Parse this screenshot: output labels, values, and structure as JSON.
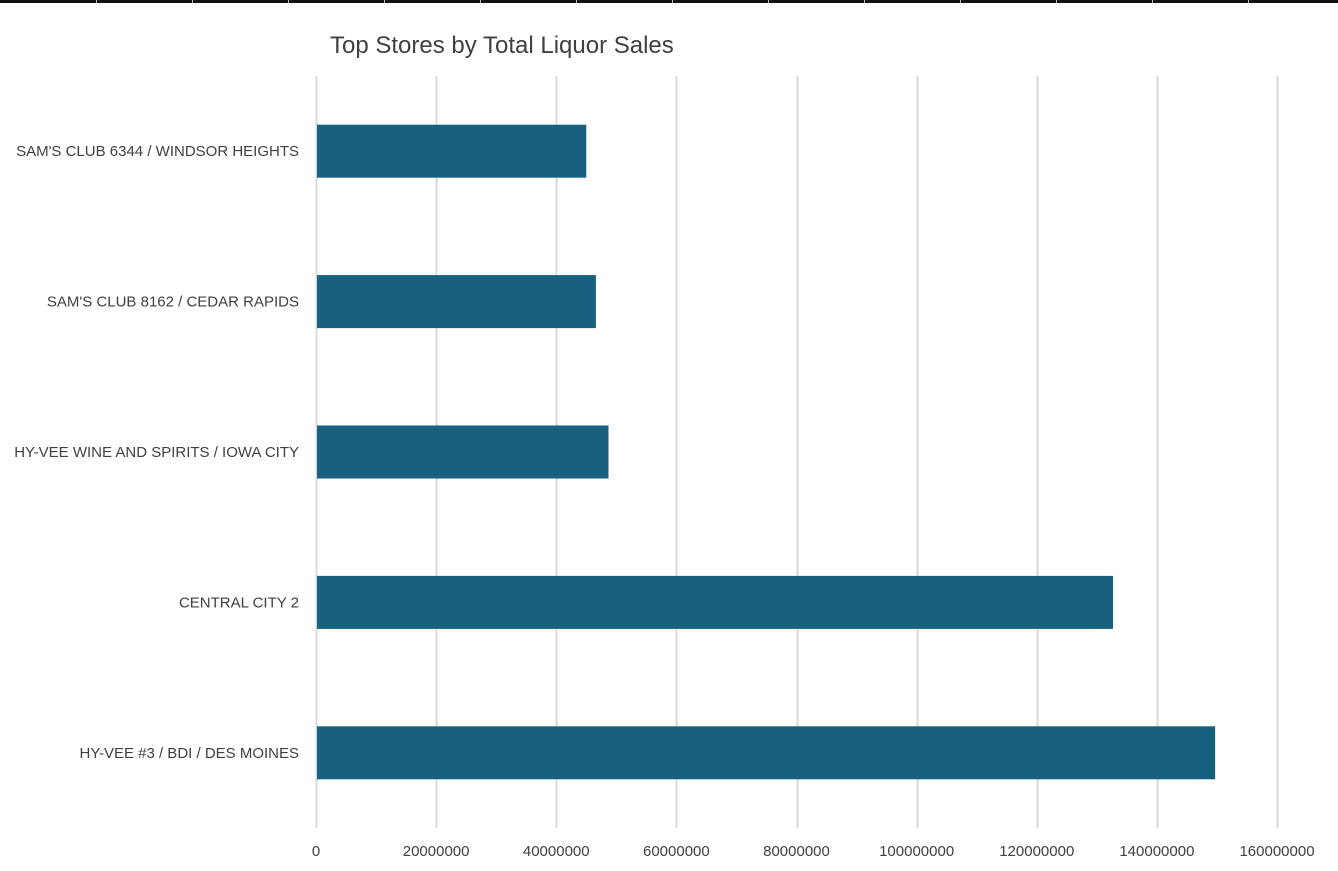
{
  "chart_data": {
    "type": "bar",
    "orientation": "horizontal",
    "title": "Top Stores by Total Liquor Sales",
    "xlabel": "",
    "ylabel": "",
    "categories": [
      "SAM'S CLUB 6344 / WINDSOR HEIGHTS",
      "SAM'S CLUB 8162 / CEDAR RAPIDS",
      "HY-VEE WINE AND SPIRITS / IOWA CITY",
      "CENTRAL CITY 2",
      "HY-VEE #3 / BDI / DES MOINES"
    ],
    "values": [
      45000000,
      46600000,
      48700000,
      132700000,
      149700000
    ],
    "xlim": [
      0,
      160000000
    ],
    "x_ticks": [
      "0",
      "20000000",
      "40000000",
      "60000000",
      "80000000",
      "100000000",
      "120000000",
      "140000000",
      "160000000"
    ],
    "grid": "vertical",
    "legend": "none",
    "bar_color": "#17607f",
    "grid_color": "#d9d9d9",
    "text_color": "#404040"
  }
}
